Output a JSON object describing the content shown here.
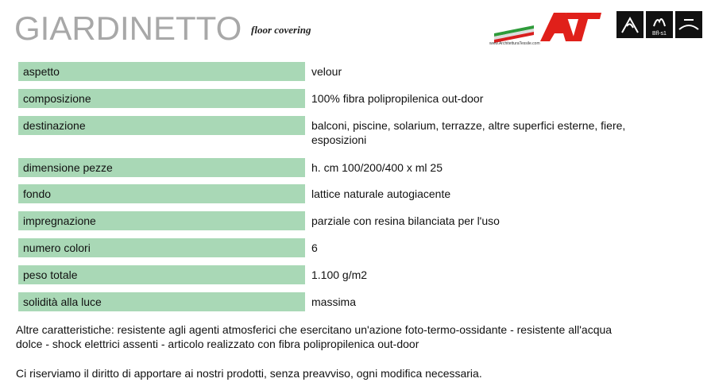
{
  "header": {
    "title": "GIARDINETTO",
    "subtitle": "floor covering",
    "logo_url": "www.ArchitetturaTessile.com",
    "fire_class": "Bfl-s1"
  },
  "table": {
    "rows": [
      [
        "aspetto",
        "velour"
      ],
      [
        "composizione",
        "100% fibra polipropilenica out-door"
      ],
      [
        "destinazione",
        "balconi, piscine, solarium, terrazze, altre superfici esterne, fiere, esposizioni"
      ],
      [
        "dimensione pezze",
        "h. cm 100/200/400 x ml 25"
      ],
      [
        "fondo",
        "lattice naturale autogiacente"
      ],
      [
        "impregnazione",
        "parziale con resina bilanciata per l'uso"
      ],
      [
        "numero colori",
        "6"
      ],
      [
        "peso totale",
        "1.100 g/m2"
      ],
      [
        "solidità alla luce",
        "massima"
      ]
    ]
  },
  "notes": [
    "Altre caratteristiche: resistente agli agenti atmosferici che esercitano un'azione foto-termo-ossidante - resistente all'acqua dolce - shock elettrici assenti - articolo realizzato con fibra polipropilenica out-door",
    "Ci riserviamo il diritto di apportare ai nostri prodotti, senza preavviso, ogni modifica necessaria."
  ]
}
